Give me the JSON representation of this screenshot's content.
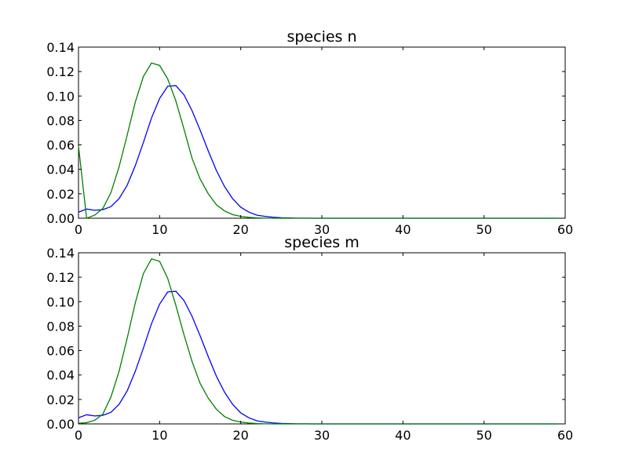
{
  "chart_data": [
    {
      "type": "line",
      "title": "species n",
      "xlabel": "",
      "ylabel": "",
      "xlim": [
        0,
        60
      ],
      "ylim": [
        0,
        0.14
      ],
      "grid": false,
      "xticks": [
        "0",
        "10",
        "20",
        "30",
        "40",
        "50",
        "60"
      ],
      "yticks": [
        "0.00",
        "0.02",
        "0.04",
        "0.06",
        "0.08",
        "0.10",
        "0.12",
        "0.14"
      ],
      "series": [
        {
          "color": "#0000ff",
          "x": [
            0,
            1,
            2,
            3,
            4,
            5,
            6,
            7,
            8,
            9,
            10,
            11,
            12,
            13,
            14,
            15,
            16,
            17,
            18,
            19,
            20,
            21,
            22,
            23,
            24,
            25,
            26,
            27,
            28,
            29,
            30,
            35,
            40,
            45,
            50,
            55,
            59
          ],
          "y": [
            0.005,
            0.0075,
            0.0065,
            0.007,
            0.0095,
            0.016,
            0.027,
            0.043,
            0.062,
            0.082,
            0.098,
            0.108,
            0.1085,
            0.101,
            0.088,
            0.072,
            0.055,
            0.039,
            0.026,
            0.016,
            0.009,
            0.005,
            0.0025,
            0.0015,
            0.0008,
            0.0004,
            0.0002,
            0.0001,
            0.0001,
            0,
            0,
            0,
            0,
            0,
            0,
            0,
            0
          ]
        },
        {
          "color": "#008000",
          "x": [
            0,
            1,
            2,
            3,
            4,
            5,
            6,
            7,
            8,
            9,
            10,
            11,
            12,
            13,
            14,
            15,
            16,
            17,
            18,
            19,
            20,
            21,
            22,
            23,
            24,
            25,
            30,
            35,
            40,
            45,
            50,
            55,
            59
          ],
          "y": [
            0.059,
            0.0,
            0.0025,
            0.008,
            0.021,
            0.042,
            0.068,
            0.095,
            0.116,
            0.127,
            0.125,
            0.114,
            0.096,
            0.073,
            0.049,
            0.032,
            0.02,
            0.011,
            0.006,
            0.003,
            0.0015,
            0.0007,
            0.0003,
            0.0001,
            0,
            0,
            0,
            0,
            0,
            0,
            0,
            0,
            0
          ]
        }
      ]
    },
    {
      "type": "line",
      "title": "species m",
      "xlabel": "",
      "ylabel": "",
      "xlim": [
        0,
        60
      ],
      "ylim": [
        0,
        0.14
      ],
      "grid": false,
      "xticks": [
        "0",
        "10",
        "20",
        "30",
        "40",
        "50",
        "60"
      ],
      "yticks": [
        "0.00",
        "0.02",
        "0.04",
        "0.06",
        "0.08",
        "0.10",
        "0.12",
        "0.14"
      ],
      "series": [
        {
          "color": "#0000ff",
          "x": [
            0,
            1,
            2,
            3,
            4,
            5,
            6,
            7,
            8,
            9,
            10,
            11,
            12,
            13,
            14,
            15,
            16,
            17,
            18,
            19,
            20,
            21,
            22,
            23,
            24,
            25,
            26,
            27,
            28,
            29,
            30,
            35,
            40,
            45,
            50,
            55,
            59
          ],
          "y": [
            0.005,
            0.0075,
            0.0065,
            0.007,
            0.0095,
            0.016,
            0.027,
            0.043,
            0.062,
            0.082,
            0.098,
            0.108,
            0.1085,
            0.101,
            0.088,
            0.072,
            0.055,
            0.039,
            0.026,
            0.016,
            0.009,
            0.005,
            0.0025,
            0.0015,
            0.0008,
            0.0004,
            0.0002,
            0.0001,
            0.0001,
            0,
            0,
            0,
            0,
            0,
            0,
            0,
            0
          ]
        },
        {
          "color": "#008000",
          "x": [
            0,
            1,
            2,
            3,
            4,
            5,
            6,
            7,
            8,
            9,
            10,
            11,
            12,
            13,
            14,
            15,
            16,
            17,
            18,
            19,
            20,
            21,
            22,
            23,
            24,
            25,
            30,
            35,
            40,
            45,
            50,
            55,
            59
          ],
          "y": [
            0.0005,
            0.001,
            0.003,
            0.008,
            0.022,
            0.043,
            0.07,
            0.099,
            0.123,
            0.135,
            0.133,
            0.119,
            0.097,
            0.073,
            0.051,
            0.033,
            0.021,
            0.012,
            0.006,
            0.003,
            0.0015,
            0.0007,
            0.0003,
            0.0001,
            0,
            0,
            0,
            0,
            0,
            0,
            0,
            0,
            0
          ]
        }
      ]
    }
  ]
}
